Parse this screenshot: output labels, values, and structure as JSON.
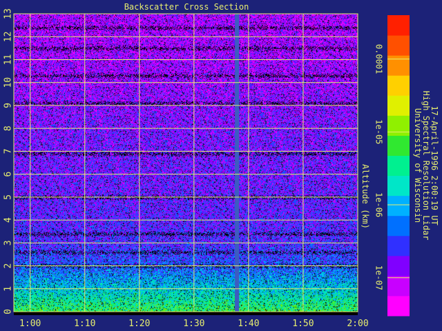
{
  "chart_data": {
    "type": "heatmap",
    "title": "Backscatter Cross Section",
    "ylabel": "Altitude (km)",
    "x_ticks": [
      "1:00",
      "1:10",
      "1:20",
      "1:30",
      "1:40",
      "1:50",
      "2:00"
    ],
    "x_range": [
      "0:57",
      "2:00"
    ],
    "ylim": [
      0,
      13
    ],
    "y_ticks": [
      0,
      1,
      2,
      3,
      4,
      5,
      6,
      7,
      8,
      9,
      10,
      11,
      12,
      13
    ],
    "grid": true,
    "data_gap_time": "1:38",
    "colorbar": {
      "scale": "log",
      "range": [
        3e-08,
        0.0004
      ],
      "ticks": [
        {
          "value": 0.0001,
          "label": "0.0001"
        },
        {
          "value": 1e-05,
          "label": "1e-05"
        },
        {
          "value": 1e-06,
          "label": "1e-06"
        },
        {
          "value": 1e-07,
          "label": "1e-07"
        }
      ],
      "colors": [
        "#ff00ff",
        "#c800ff",
        "#8000ff",
        "#3030ff",
        "#0070ff",
        "#00b0ff",
        "#00e6c8",
        "#00f090",
        "#30e830",
        "#90f000",
        "#e0f000",
        "#ffd000",
        "#ff9000",
        "#ff5000",
        "#ff2000"
      ]
    },
    "profile": [
      {
        "alt": 0.0,
        "level": 0.55
      },
      {
        "alt": 1.0,
        "level": 0.4
      },
      {
        "alt": 2.0,
        "level": 0.26
      },
      {
        "alt": 3.0,
        "level": 0.2
      },
      {
        "alt": 5.0,
        "level": 0.17
      },
      {
        "alt": 8.0,
        "level": 0.15
      },
      {
        "alt": 10.0,
        "level": 0.12
      },
      {
        "alt": 13.0,
        "level": 0.1
      }
    ],
    "dark_bands_km": [
      12.4,
      11.5,
      10.3,
      9.1,
      6.9,
      5.0,
      3.4,
      2.6,
      2.0
    ]
  },
  "credit": {
    "line1": "University of Wisconsin",
    "line2": "High Spectral Resolution Lidar",
    "line3": "17-April-1996  2:00:19 UT"
  },
  "colors": {
    "background": "#1c2278",
    "grid": "#e7ee6f",
    "text": "#e7ee6f",
    "gap": "#3d5cc0"
  }
}
